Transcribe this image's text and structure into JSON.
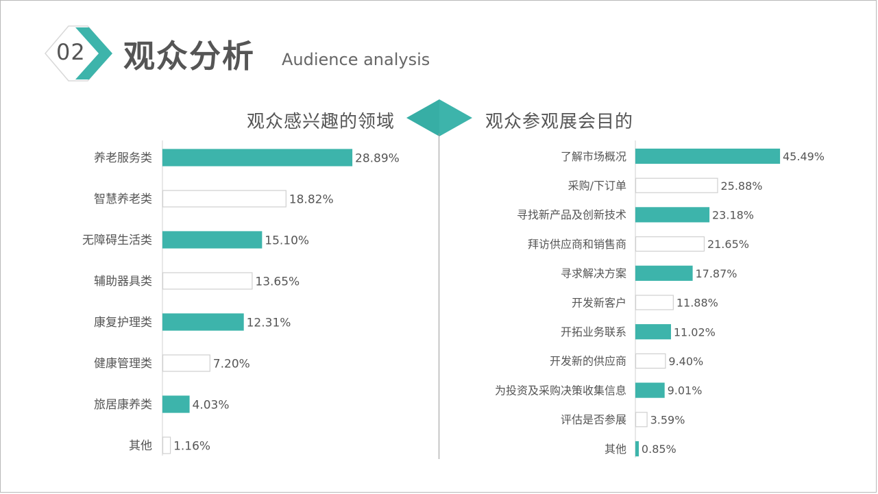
{
  "header": {
    "number": "02",
    "title": "观众分析",
    "subtitle": "Audience analysis"
  },
  "colors": {
    "accent": "#3db4ab",
    "text": "#555555",
    "outline": "#cfcfcf"
  },
  "icons": {
    "diamond": "diamond-icon",
    "badge": "chevron-badge-icon"
  },
  "chart_data": [
    {
      "type": "bar",
      "orientation": "horizontal",
      "title": "观众感兴趣的领域",
      "categories": [
        "养老服务类",
        "智慧养老类",
        "无障碍生活类",
        "辅助器具类",
        "康复护理类",
        "健康管理类",
        "旅居康养类",
        "其他"
      ],
      "values": [
        28.89,
        18.82,
        15.1,
        13.65,
        12.31,
        7.2,
        4.03,
        1.16
      ],
      "labels": [
        "28.89%",
        "18.82%",
        "15.10%",
        "13.65%",
        "12.31%",
        "7.20%",
        "4.03%",
        "1.16%"
      ],
      "fills": [
        "filled",
        "outline",
        "filled",
        "outline",
        "filled",
        "outline",
        "filled",
        "outline"
      ],
      "unit": "%"
    },
    {
      "type": "bar",
      "orientation": "horizontal",
      "title": "观众参观展会目的",
      "categories": [
        "了解市场概况",
        "采购/下订单",
        "寻找新产品及创新技术",
        "拜访供应商和销售商",
        "寻求解决方案",
        "开发新客户",
        "开拓业务联系",
        "开发新的供应商",
        "为投资及采购决策收集信息",
        "评估是否参展",
        "其他"
      ],
      "values": [
        45.49,
        25.88,
        23.18,
        21.65,
        17.87,
        11.88,
        11.02,
        9.4,
        9.01,
        3.59,
        0.85
      ],
      "labels": [
        "45.49%",
        "25.88%",
        "23.18%",
        "21.65%",
        "17.87%",
        "11.88%",
        "11.02%",
        "9.40%",
        "9.01%",
        "3.59%",
        "0.85%"
      ],
      "fills": [
        "filled",
        "outline",
        "filled",
        "outline",
        "filled",
        "outline",
        "filled",
        "outline",
        "filled",
        "outline",
        "filled"
      ],
      "unit": "%"
    }
  ]
}
